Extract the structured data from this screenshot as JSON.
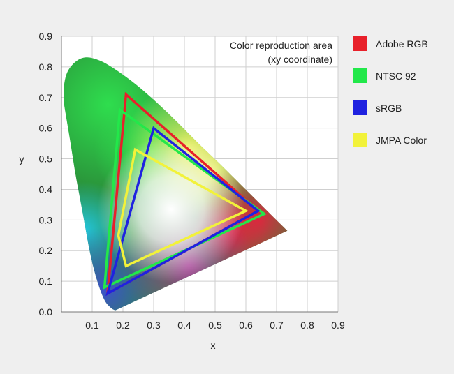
{
  "chart_data": {
    "type": "line",
    "title": "",
    "annotation_lines": [
      "Color reproduction area",
      "(xy coordinate)"
    ],
    "xlabel": "x",
    "ylabel": "y",
    "xlim": [
      0.0,
      0.9
    ],
    "ylim": [
      0.0,
      0.9
    ],
    "x_ticks": [
      "0.1",
      "0.2",
      "0.3",
      "0.4",
      "0.5",
      "0.6",
      "0.7",
      "0.8",
      "0.9"
    ],
    "y_ticks": [
      "0.0",
      "0.1",
      "0.2",
      "0.3",
      "0.4",
      "0.5",
      "0.6",
      "0.7",
      "0.8",
      "0.9"
    ],
    "grid": true,
    "legend_position": "right",
    "locus": [
      [
        0.175,
        0.005
      ],
      [
        0.166,
        0.009
      ],
      [
        0.156,
        0.018
      ],
      [
        0.144,
        0.03
      ],
      [
        0.13,
        0.06
      ],
      [
        0.11,
        0.12
      ],
      [
        0.091,
        0.2
      ],
      [
        0.068,
        0.33
      ],
      [
        0.045,
        0.45
      ],
      [
        0.03,
        0.55
      ],
      [
        0.013,
        0.65
      ],
      [
        0.005,
        0.7
      ],
      [
        0.012,
        0.775
      ],
      [
        0.04,
        0.815
      ],
      [
        0.074,
        0.834
      ],
      [
        0.115,
        0.826
      ],
      [
        0.155,
        0.806
      ],
      [
        0.23,
        0.754
      ],
      [
        0.302,
        0.692
      ],
      [
        0.373,
        0.624
      ],
      [
        0.445,
        0.55
      ],
      [
        0.512,
        0.487
      ],
      [
        0.575,
        0.424
      ],
      [
        0.627,
        0.372
      ],
      [
        0.691,
        0.308
      ],
      [
        0.735,
        0.265
      ]
    ],
    "series": [
      {
        "name": "Adobe RGB",
        "color": "#e8202a",
        "points": [
          [
            0.21,
            0.71
          ],
          [
            0.64,
            0.33
          ],
          [
            0.15,
            0.06
          ]
        ]
      },
      {
        "name": "NTSC 92",
        "color": "#22e84a",
        "points": [
          [
            0.19,
            0.66
          ],
          [
            0.66,
            0.32
          ],
          [
            0.14,
            0.08
          ]
        ]
      },
      {
        "name": "sRGB",
        "color": "#1f22e0",
        "points": [
          [
            0.3,
            0.6
          ],
          [
            0.64,
            0.33
          ],
          [
            0.15,
            0.06
          ]
        ]
      },
      {
        "name": "JMPA Color",
        "color": "#f2f23a",
        "points": [
          [
            0.24,
            0.53
          ],
          [
            0.6,
            0.33
          ],
          [
            0.21,
            0.15
          ],
          [
            0.185,
            0.25
          ]
        ]
      }
    ]
  }
}
